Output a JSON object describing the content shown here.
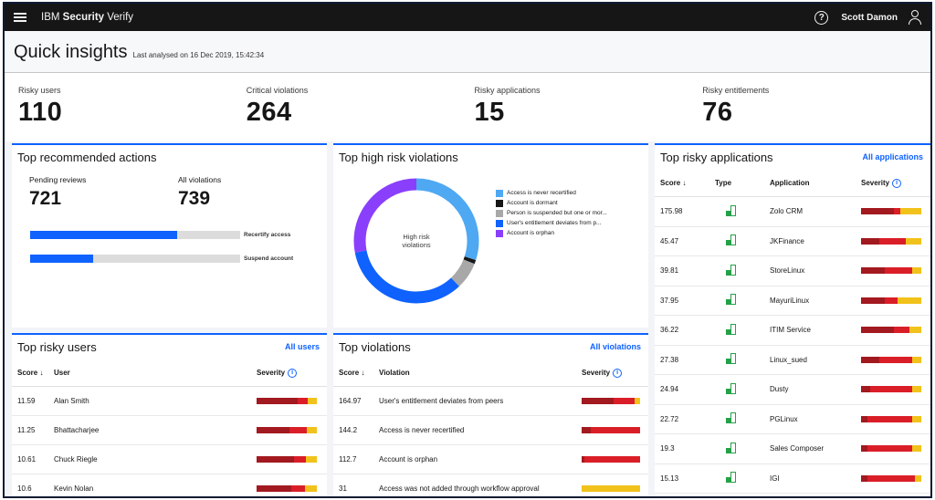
{
  "topbar": {
    "brand_prefix": "IBM",
    "brand_name": "Security",
    "brand_suffix": "Verify",
    "user_name": "Scott Damon"
  },
  "header": {
    "title": "Quick insights",
    "last_analysed": "Last analysed on 16 Dec 2019, 15:42:34"
  },
  "kpis": [
    {
      "label": "Risky users",
      "value": "110"
    },
    {
      "label": "Critical violations",
      "value": "264"
    },
    {
      "label": "Risky applications",
      "value": "15"
    },
    {
      "label": "Risky entitlements",
      "value": "76"
    }
  ],
  "recommended": {
    "title": "Top recommended actions",
    "pending_label": "Pending reviews",
    "pending_value": "721",
    "violations_label": "All violations",
    "violations_value": "739",
    "bars": [
      {
        "label": "Recertify access",
        "fraction": 0.7
      },
      {
        "label": "Suspend account",
        "fraction": 0.3
      }
    ]
  },
  "high_risk": {
    "title": "Top high risk violations",
    "center_label_1": "High risk",
    "center_label_2": "violations",
    "legend": [
      {
        "label": "Access is never recertified",
        "color": "#4fa8f2",
        "value": 0.3
      },
      {
        "label": "Account is dormant",
        "color": "#161616",
        "value": 0.01
      },
      {
        "label": "Person is suspended but one or mor...",
        "color": "#a8a8a8",
        "value": 0.07
      },
      {
        "label": "User's entitlement deviates from p...",
        "color": "#0f62fe",
        "value": 0.34
      },
      {
        "label": "Account is orphan",
        "color": "#8a3ffc",
        "value": 0.28
      }
    ]
  },
  "risky_users": {
    "title": "Top risky users",
    "link": "All users",
    "col_score": "Score",
    "col_user": "User",
    "col_severity": "Severity",
    "rows": [
      {
        "score": "11.59",
        "user": "Alan Smith",
        "severity": [
          0.68,
          0.17,
          0.15
        ]
      },
      {
        "score": "11.25",
        "user": "Bhattacharjee",
        "severity": [
          0.55,
          0.28,
          0.17
        ]
      },
      {
        "score": "10.61",
        "user": "Chuck Riegle",
        "severity": [
          0.62,
          0.2,
          0.18
        ]
      },
      {
        "score": "10.6",
        "user": "Kevin Nolan",
        "severity": [
          0.58,
          0.22,
          0.2
        ]
      }
    ]
  },
  "violations": {
    "title": "Top violations",
    "link": "All violations",
    "col_score": "Score",
    "col_violation": "Violation",
    "col_severity": "Severity",
    "rows": [
      {
        "score": "164.97",
        "violation": "User's entitlement deviates from peers",
        "severity": [
          0.55,
          0.35,
          0.1
        ]
      },
      {
        "score": "144.2",
        "violation": "Access is never recertified",
        "severity": [
          0.15,
          0.85,
          0.0
        ]
      },
      {
        "score": "112.7",
        "violation": "Account is orphan",
        "severity": [
          0.05,
          0.95,
          0.0
        ]
      },
      {
        "score": "31",
        "violation": "Access was not added through workflow approval",
        "severity": [
          0.0,
          0.0,
          1.0
        ]
      }
    ]
  },
  "applications": {
    "title": "Top risky applications",
    "link": "All applications",
    "col_score": "Score",
    "col_type": "Type",
    "col_app": "Application",
    "col_severity": "Severity",
    "rows": [
      {
        "score": "175.98",
        "app": "Zolo CRM",
        "severity": [
          0.55,
          0.1,
          0.35
        ]
      },
      {
        "score": "45.47",
        "app": "JKFinance",
        "severity": [
          0.3,
          0.45,
          0.25
        ]
      },
      {
        "score": "39.81",
        "app": "StoreLinux",
        "severity": [
          0.4,
          0.45,
          0.15
        ]
      },
      {
        "score": "37.95",
        "app": "MayuriLinux",
        "severity": [
          0.4,
          0.2,
          0.4
        ]
      },
      {
        "score": "36.22",
        "app": "ITIM Service",
        "severity": [
          0.55,
          0.25,
          0.2
        ]
      },
      {
        "score": "27.38",
        "app": "Linux_sued",
        "severity": [
          0.3,
          0.55,
          0.15
        ]
      },
      {
        "score": "24.94",
        "app": "Dusty",
        "severity": [
          0.15,
          0.7,
          0.15
        ]
      },
      {
        "score": "22.72",
        "app": "PGLinux",
        "severity": [
          0.1,
          0.75,
          0.15
        ]
      },
      {
        "score": "19.3",
        "app": "Sales Composer",
        "severity": [
          0.1,
          0.75,
          0.15
        ]
      },
      {
        "score": "15.13",
        "app": "IGI",
        "severity": [
          0.1,
          0.8,
          0.1
        ]
      }
    ]
  },
  "colors": {
    "accent": "#0f62fe",
    "sev_high": "#a2191f",
    "sev_med": "#da1e28",
    "sev_low": "#f1c21b"
  }
}
